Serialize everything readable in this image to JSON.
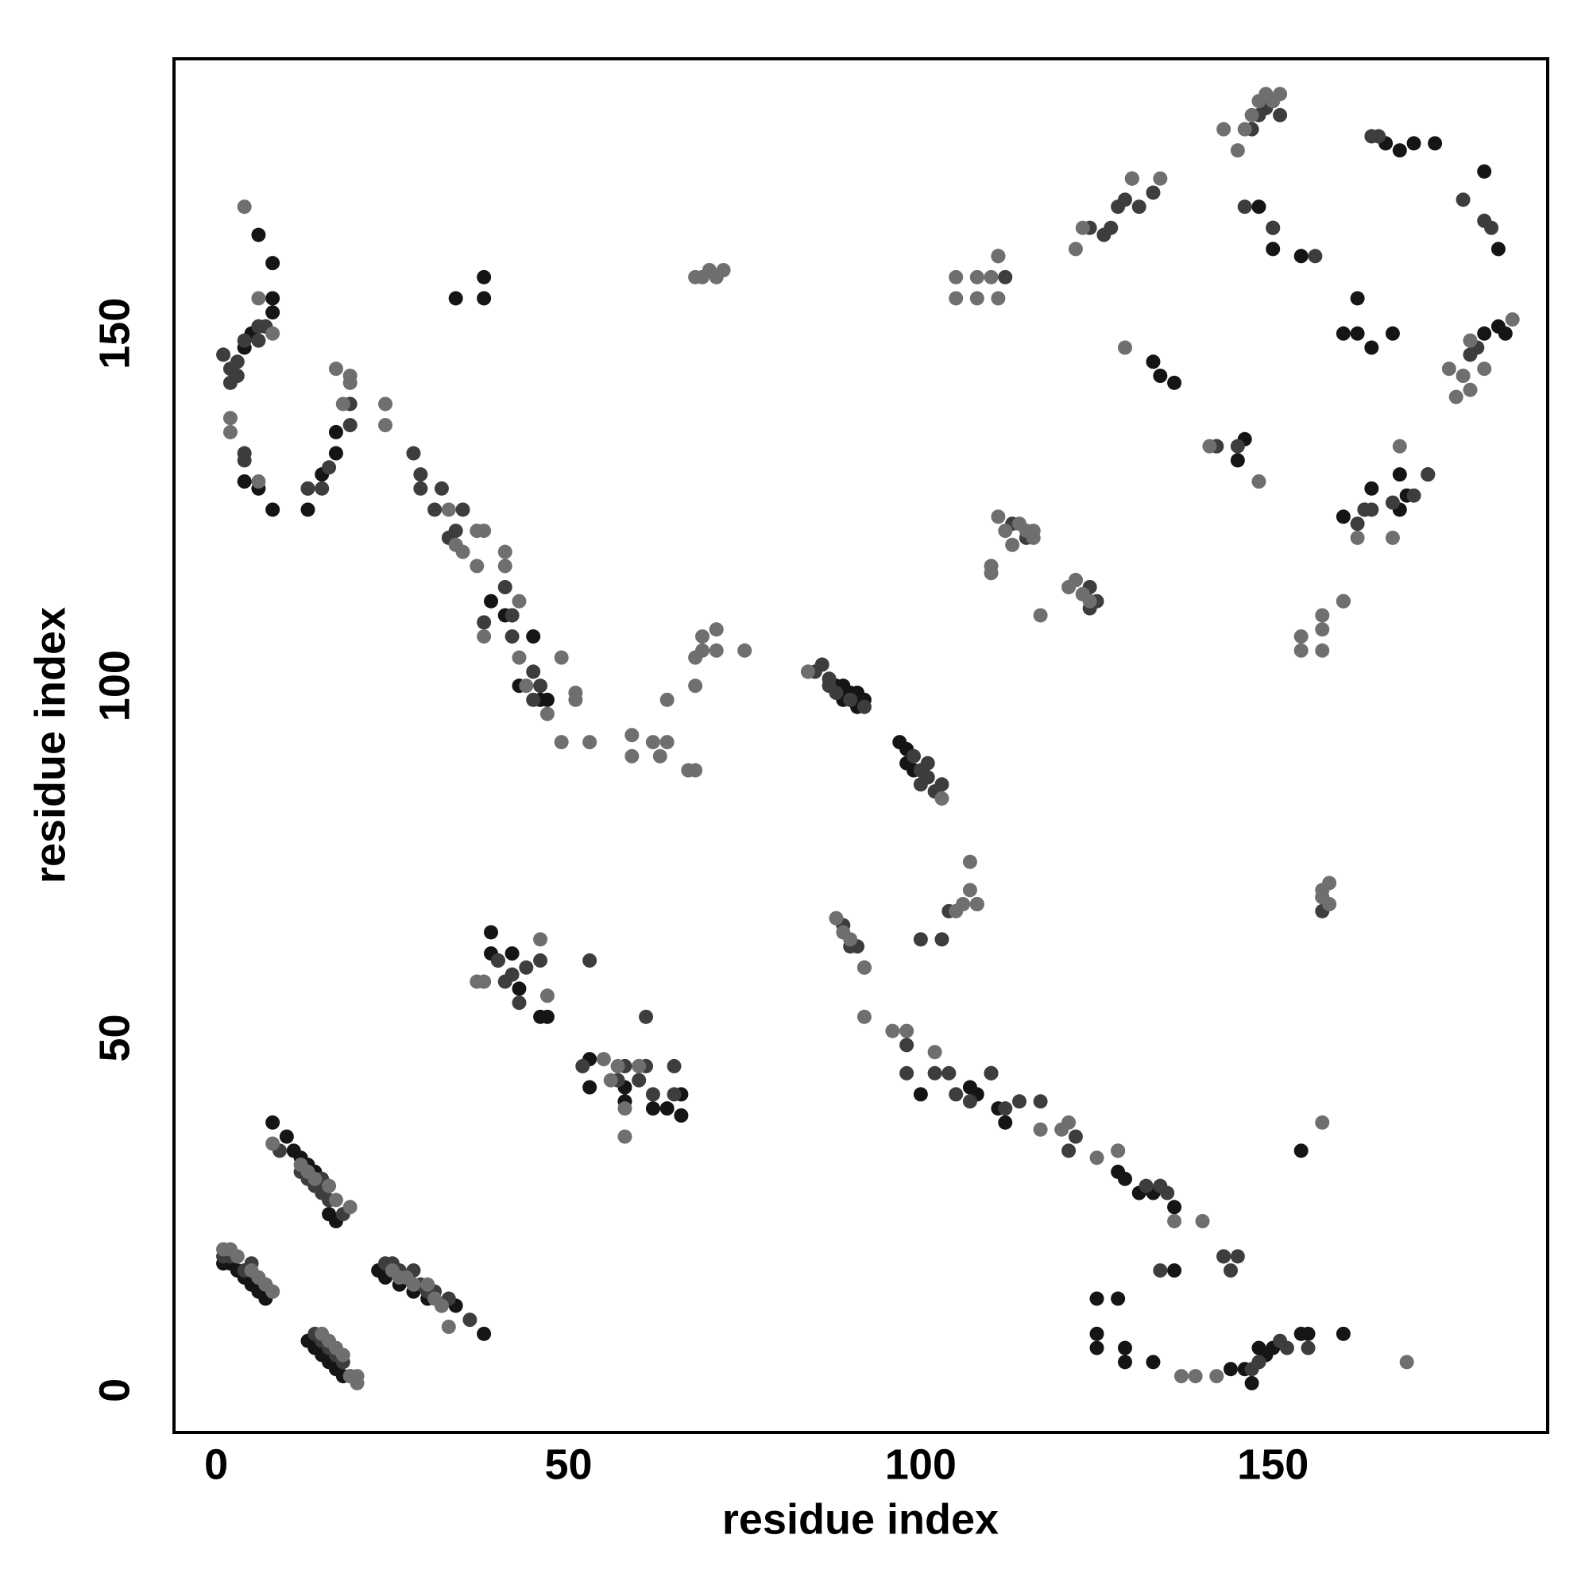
{
  "chart_data": {
    "type": "scatter",
    "xlabel": "residue index",
    "ylabel": "residue index",
    "xlim": [
      -6,
      189
    ],
    "ylim": [
      -6,
      189
    ],
    "xticks": [
      0,
      50,
      100,
      150
    ],
    "yticks": [
      0,
      50,
      100,
      150
    ],
    "grid": false,
    "series": [
      {
        "color": "#151515",
        "x": [
          1,
          2,
          3,
          4,
          5,
          6,
          7,
          13,
          14,
          15,
          16,
          17,
          18,
          19,
          8,
          10,
          11,
          12,
          13,
          14,
          16,
          17,
          23,
          24,
          26,
          28,
          30,
          32,
          34,
          38,
          4,
          5,
          6,
          7,
          8,
          8,
          8,
          6,
          4,
          6,
          8,
          13,
          13,
          15,
          17,
          17,
          34,
          38,
          38,
          39,
          41,
          42,
          43,
          45,
          46,
          47,
          88,
          89,
          89,
          90,
          90,
          91,
          91,
          92,
          97,
          98,
          98,
          99,
          39,
          39,
          40,
          42,
          43,
          46,
          47,
          53,
          53,
          58,
          58,
          60,
          62,
          64,
          66,
          66,
          100,
          107,
          108,
          110,
          111,
          112,
          125,
          128,
          129,
          131,
          133,
          136,
          136,
          125,
          128,
          129,
          125,
          129,
          133,
          144,
          146,
          147,
          148,
          148,
          149,
          150,
          154,
          155,
          154,
          160,
          130,
          133,
          134,
          136,
          142,
          145,
          146,
          148,
          150,
          150,
          154,
          160,
          162,
          166,
          168,
          170,
          173,
          180,
          182,
          160,
          162,
          164,
          167,
          168,
          180,
          182,
          183,
          160,
          163,
          164,
          168,
          169,
          172
        ],
        "y": [
          18,
          18,
          17,
          16,
          15,
          14,
          13,
          7,
          6,
          5,
          4,
          3,
          2,
          2,
          38,
          36,
          34,
          33,
          32,
          31,
          25,
          24,
          17,
          16,
          15,
          14,
          13,
          12,
          12,
          8,
          148,
          150,
          151,
          151,
          153,
          155,
          160,
          164,
          129,
          128,
          125,
          128,
          125,
          130,
          133,
          136,
          155,
          155,
          158,
          112,
          110,
          110,
          100,
          107,
          98,
          98,
          100,
          98,
          100,
          99,
          98,
          97,
          99,
          98,
          92,
          89,
          91,
          88,
          65,
          62,
          61,
          62,
          57,
          53,
          53,
          47,
          43,
          43,
          41,
          46,
          40,
          40,
          42,
          39,
          42,
          43,
          42,
          45,
          40,
          38,
          13,
          31,
          30,
          28,
          28,
          26,
          17,
          6,
          13,
          4,
          8,
          6,
          4,
          3,
          3,
          1,
          4,
          6,
          5,
          6,
          8,
          8,
          34,
          8,
          172,
          146,
          144,
          143,
          134,
          132,
          135,
          168,
          165,
          162,
          161,
          112,
          155,
          177,
          176,
          177,
          177,
          173,
          162,
          150,
          150,
          148,
          150,
          130,
          150,
          151,
          150,
          124,
          125,
          128,
          125,
          127,
          130
        ]
      },
      {
        "color": "#3d3d3d",
        "x": [
          1,
          2,
          4,
          5,
          6,
          7,
          8,
          14,
          15,
          16,
          17,
          18,
          9,
          12,
          13,
          14,
          15,
          15,
          16,
          18,
          24,
          25,
          26,
          27,
          28,
          29,
          30,
          31,
          33,
          36,
          1,
          2,
          2,
          3,
          3,
          4,
          6,
          6,
          7,
          4,
          4,
          13,
          15,
          16,
          19,
          19,
          28,
          29,
          29,
          31,
          32,
          33,
          34,
          35,
          38,
          41,
          42,
          42,
          45,
          45,
          46,
          84,
          85,
          86,
          87,
          87,
          88,
          90,
          92,
          99,
          100,
          100,
          101,
          101,
          102,
          103,
          40,
          41,
          42,
          43,
          44,
          46,
          52,
          53,
          57,
          58,
          60,
          61,
          61,
          62,
          65,
          65,
          89,
          90,
          91,
          92,
          98,
          98,
          102,
          104,
          105,
          107,
          110,
          112,
          114,
          117,
          121,
          122,
          128,
          132,
          134,
          135,
          143,
          144,
          145,
          134,
          143,
          147,
          148,
          151,
          152,
          155,
          100,
          103,
          104,
          108,
          111,
          112,
          113,
          115,
          122,
          123,
          124,
          124,
          125,
          124,
          126,
          127,
          128,
          129,
          131,
          133,
          142,
          145,
          147,
          149,
          150,
          151,
          146,
          148,
          150,
          156,
          164,
          165,
          177,
          180,
          181,
          157,
          157,
          162,
          163,
          164,
          167,
          170,
          172,
          178,
          179
        ],
        "y": [
          19,
          19,
          17,
          18,
          16,
          15,
          14,
          8,
          7,
          6,
          5,
          4,
          34,
          31,
          30,
          29,
          28,
          30,
          27,
          25,
          18,
          18,
          17,
          16,
          17,
          15,
          14,
          14,
          13,
          10,
          147,
          145,
          143,
          146,
          144,
          149,
          149,
          151,
          151,
          132,
          133,
          128,
          128,
          131,
          140,
          137,
          133,
          128,
          130,
          125,
          128,
          121,
          122,
          125,
          109,
          114,
          107,
          110,
          102,
          98,
          100,
          102,
          102,
          103,
          101,
          100,
          99,
          98,
          97,
          90,
          88,
          86,
          87,
          89,
          85,
          86,
          61,
          58,
          59,
          55,
          60,
          61,
          46,
          61,
          44,
          46,
          44,
          53,
          46,
          42,
          46,
          42,
          66,
          63,
          63,
          60,
          49,
          45,
          45,
          45,
          42,
          41,
          45,
          40,
          41,
          41,
          34,
          36,
          34,
          29,
          29,
          28,
          19,
          17,
          19,
          17,
          19,
          3,
          4,
          7,
          6,
          6,
          64,
          64,
          68,
          69,
          161,
          158,
          123,
          121,
          115,
          113,
          111,
          114,
          112,
          165,
          164,
          165,
          168,
          169,
          168,
          170,
          134,
          134,
          179,
          182,
          183,
          181,
          168,
          181,
          165,
          161,
          178,
          178,
          169,
          166,
          165,
          68,
          70,
          123,
          125,
          125,
          126,
          127,
          130,
          147,
          148
        ]
      },
      {
        "color": "#6f6f6f",
        "x": [
          1,
          2,
          3,
          5,
          6,
          7,
          8,
          15,
          16,
          17,
          18,
          19,
          20,
          20,
          8,
          12,
          13,
          14,
          16,
          17,
          19,
          25,
          26,
          27,
          28,
          30,
          31,
          32,
          33,
          4,
          2,
          2,
          6,
          6,
          8,
          17,
          19,
          19,
          18,
          24,
          24,
          33,
          34,
          35,
          37,
          37,
          38,
          38,
          41,
          41,
          43,
          43,
          44,
          47,
          49,
          49,
          51,
          51,
          53,
          59,
          59,
          62,
          63,
          64,
          64,
          67,
          68,
          68,
          68,
          69,
          69,
          71,
          71,
          75,
          68,
          69,
          70,
          71,
          72,
          84,
          103,
          37,
          38,
          46,
          47,
          55,
          56,
          57,
          58,
          58,
          60,
          88,
          89,
          90,
          92,
          92,
          96,
          98,
          102,
          105,
          106,
          107,
          107,
          108,
          111,
          117,
          120,
          121,
          125,
          128,
          136,
          140,
          137,
          139,
          142,
          157,
          169,
          105,
          105,
          108,
          108,
          110,
          111,
          110,
          110,
          111,
          112,
          113,
          114,
          115,
          116,
          116,
          117,
          121,
          122,
          123,
          124,
          122,
          123,
          130,
          134,
          129,
          141,
          148,
          143,
          145,
          146,
          147,
          148,
          149,
          150,
          151,
          157,
          158,
          158,
          157,
          154,
          154,
          157,
          157,
          157,
          160,
          162,
          167,
          168,
          175,
          177,
          178,
          176,
          178,
          180,
          184
        ],
        "y": [
          20,
          20,
          19,
          17,
          16,
          15,
          14,
          8,
          7,
          6,
          5,
          2,
          1,
          2,
          35,
          32,
          31,
          30,
          29,
          27,
          26,
          17,
          16,
          16,
          15,
          15,
          13,
          12,
          9,
          168,
          138,
          136,
          129,
          155,
          150,
          145,
          144,
          143,
          140,
          140,
          137,
          125,
          120,
          119,
          117,
          122,
          122,
          107,
          119,
          117,
          104,
          112,
          100,
          96,
          92,
          104,
          99,
          98,
          92,
          93,
          90,
          92,
          90,
          92,
          98,
          88,
          88,
          100,
          104,
          105,
          107,
          105,
          108,
          105,
          158,
          158,
          159,
          158,
          159,
          102,
          84,
          58,
          58,
          64,
          56,
          47,
          44,
          46,
          36,
          40,
          46,
          67,
          65,
          64,
          60,
          53,
          51,
          51,
          48,
          68,
          69,
          71,
          75,
          69,
          161,
          37,
          37,
          38,
          33,
          34,
          24,
          24,
          2,
          2,
          2,
          38,
          4,
          158,
          155,
          158,
          155,
          158,
          155,
          116,
          117,
          124,
          122,
          120,
          123,
          122,
          122,
          121,
          110,
          114,
          115,
          113,
          112,
          162,
          165,
          172,
          172,
          148,
          134,
          129,
          179,
          176,
          179,
          181,
          183,
          184,
          183,
          184,
          71,
          72,
          69,
          70,
          107,
          105,
          108,
          110,
          105,
          112,
          121,
          121,
          134,
          145,
          144,
          142,
          141,
          149,
          145,
          152
        ]
      }
    ]
  }
}
